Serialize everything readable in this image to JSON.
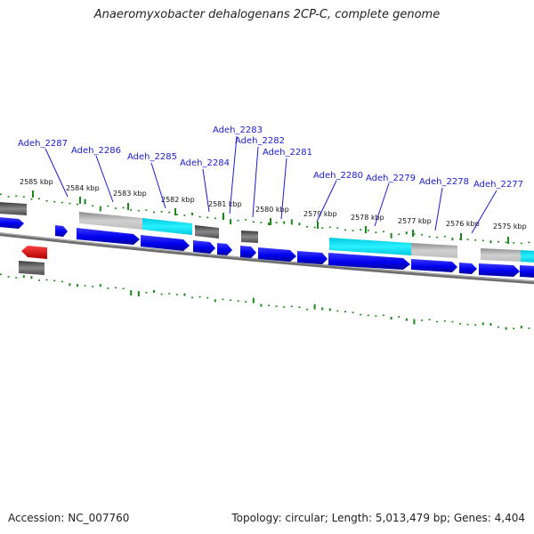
{
  "title": "Anaeromyxobacter dehalogenans 2CP-C, complete genome",
  "footer": {
    "accession": "Accession: NC_007760",
    "info": "Topology: circular; Length: 5,013,479 bp; Genes: 4,404"
  },
  "colors": {
    "cds_forward": "#0000ff",
    "cds_reverse": "#ff0000",
    "rna_highlight": "#00e5ff",
    "gray_feature": "#a9a9a9",
    "dark_feature": "#555555",
    "backbone": "#7a7a7a",
    "gc_ticks": "#1a8a1a",
    "label_text": "#1a1ad6"
  },
  "scale_labels": [
    {
      "text": "2585 kbp",
      "pos": 2585
    },
    {
      "text": "2584 kbp",
      "pos": 2584
    },
    {
      "text": "2583 kbp",
      "pos": 2583
    },
    {
      "text": "2582 kbp",
      "pos": 2582
    },
    {
      "text": "2581 kbp",
      "pos": 2581
    },
    {
      "text": "2580 kbp",
      "pos": 2580
    },
    {
      "text": "2579 kbp",
      "pos": 2579
    },
    {
      "text": "2578 kbp",
      "pos": 2578
    },
    {
      "text": "2577 kbp",
      "pos": 2577
    },
    {
      "text": "2576 kbp",
      "pos": 2576
    },
    {
      "text": "2575 kbp",
      "pos": 2575
    }
  ],
  "gene_labels": [
    {
      "text": "Adeh_2287"
    },
    {
      "text": "Adeh_2286"
    },
    {
      "text": "Adeh_2285"
    },
    {
      "text": "Adeh_2284"
    },
    {
      "text": "Adeh_2283"
    },
    {
      "text": "Adeh_2282"
    },
    {
      "text": "Adeh_2281"
    },
    {
      "text": "Adeh_2280"
    },
    {
      "text": "Adeh_2279"
    },
    {
      "text": "Adeh_2278"
    },
    {
      "text": "Adeh_2277"
    }
  ]
}
